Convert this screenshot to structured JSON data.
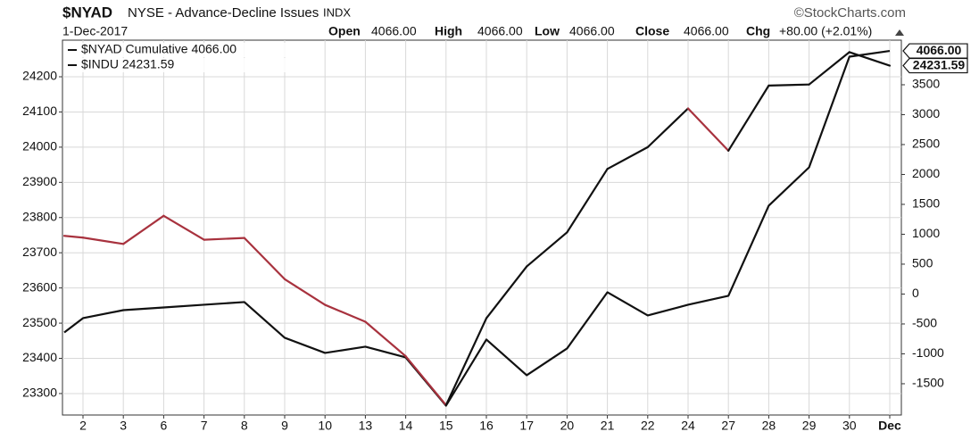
{
  "chart_data": {
    "type": "line",
    "symbol": "$NYAD",
    "title": "NYSE - Advance-Decline Issues",
    "exchange": "INDX",
    "copyright": "©StockCharts.com",
    "date": "1-Dec-2017",
    "quote": [
      {
        "label": "Open",
        "value": "4066.00"
      },
      {
        "label": "High",
        "value": "4066.00"
      },
      {
        "label": "Low",
        "value": "4066.00"
      },
      {
        "label": "Close",
        "value": "4066.00"
      },
      {
        "label": "Chg",
        "value": "+80.00 (+2.01%)"
      }
    ],
    "categories": [
      null,
      "2",
      "3",
      "6",
      "7",
      "8",
      "9",
      "10",
      "13",
      "14",
      "15",
      "16",
      "17",
      "20",
      "21",
      "22",
      "24",
      "27",
      "28",
      "29",
      "30",
      "Dec"
    ],
    "series": [
      {
        "name": "$NYAD Cumulative 4066.00",
        "color": "#111111",
        "axis": "y2",
        "last_value_label": "4066.00",
        "values": [
          -642,
          -403,
          -269,
          -224,
          -179,
          -134,
          -731,
          -985,
          -880,
          -1060,
          -1866,
          -761,
          -1358,
          -910,
          30,
          -358,
          -179,
          -30,
          1478,
          2119,
          3970,
          4066
        ]
      },
      {
        "name": "$INDU 24231.59",
        "color": "#111111",
        "axis": "y",
        "last_value_label": "24231.59",
        "segment_colors": [
          "#a8323e",
          "#a8323e",
          "#a8323e",
          "#a8323e",
          "#a8323e",
          "#a8323e",
          "#a8323e",
          "#a8323e",
          "#a8323e",
          "#a8323e",
          "#111111",
          "#111111",
          "#111111",
          "#111111",
          "#111111",
          "#111111",
          "#a8323e",
          "#111111",
          "#111111",
          "#111111",
          "#111111"
        ],
        "values": [
          23748,
          23743,
          23725,
          23805,
          23737,
          23742,
          23625,
          23552,
          23504,
          23406,
          23267,
          23514,
          23661,
          23758,
          23938,
          24000,
          24110,
          23990,
          24175,
          24178,
          24270,
          24231.59
        ]
      }
    ],
    "ylim": [
      23239,
      24304
    ],
    "yticks": [
      23300,
      23400,
      23500,
      23600,
      23700,
      23800,
      23900,
      24000,
      24100,
      24200
    ],
    "y2lim": [
      -2023,
      4246
    ],
    "y2ticks": [
      -1500,
      -1000,
      -500,
      0,
      500,
      1000,
      1500,
      2000,
      2500,
      3000,
      3500
    ],
    "grid": true
  }
}
